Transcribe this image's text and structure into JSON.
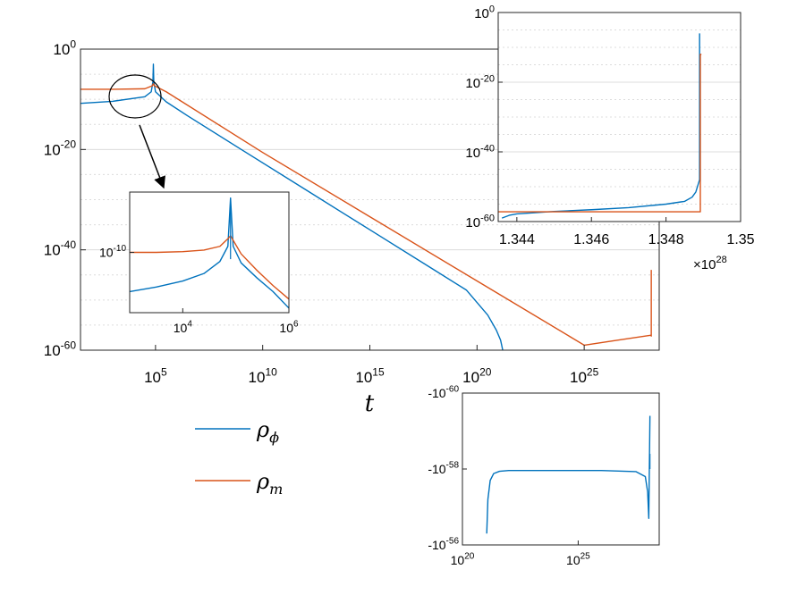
{
  "colors": {
    "rho_phi": "#0072BD",
    "rho_m": "#D95319",
    "grid": "#dcdcdc",
    "axis": "#262626"
  },
  "legend": {
    "placement": "below-left",
    "entries": [
      {
        "series": "rho_phi",
        "base": "ρ",
        "sub": "ϕ"
      },
      {
        "series": "rho_m",
        "base": "ρ",
        "sub": "m"
      }
    ]
  },
  "chart_data": [
    {
      "id": "main",
      "type": "line",
      "xlabel": "t",
      "ylabel": "",
      "xscale": "log",
      "yscale": "log",
      "xlim_exp": [
        1.5,
        28.5
      ],
      "ylim_exp": [
        -60,
        0
      ],
      "grid": true,
      "xticks": [
        {
          "base": "10",
          "exp": "5"
        },
        {
          "base": "10",
          "exp": "10"
        },
        {
          "base": "10",
          "exp": "15"
        },
        {
          "base": "10",
          "exp": "20"
        },
        {
          "base": "10",
          "exp": "25"
        }
      ],
      "yticks": [
        {
          "base": "10",
          "exp": "0"
        },
        {
          "base": "10",
          "exp": "-20"
        },
        {
          "base": "10",
          "exp": "-40"
        },
        {
          "base": "10",
          "exp": "-60"
        }
      ],
      "series": [
        {
          "key": "rho_phi",
          "name": "ρϕ",
          "x_exp": [
            1.5,
            3,
            4.5,
            4.8,
            4.88,
            4.9,
            4.92,
            5.0,
            5.5,
            6.5,
            9,
            12,
            15,
            18,
            19.5,
            20.5,
            20.9,
            21.1,
            21.2
          ],
          "y_exp": [
            -10.8,
            -10.4,
            -9.5,
            -8.5,
            -6.5,
            -3.0,
            -6.5,
            -8.5,
            -10.5,
            -13.3,
            -20,
            -28,
            -36,
            -44,
            -48,
            -53,
            -56,
            -58,
            -60
          ]
        },
        {
          "key": "rho_m",
          "name": "ρm",
          "x_exp": [
            1.5,
            3,
            4.5,
            4.85,
            4.9,
            4.95,
            5.5,
            10,
            15,
            20,
            25,
            28.13,
            28.13,
            28.13
          ],
          "y_exp": [
            -8,
            -8,
            -7.9,
            -7.3,
            -6.9,
            -7.3,
            -8.5,
            -20.6,
            -33.4,
            -46.2,
            -59,
            -57,
            -57.2,
            -44
          ]
        }
      ]
    },
    {
      "id": "inset-left",
      "type": "line",
      "xscale": "log",
      "yscale": "log",
      "xlim_exp": [
        3,
        6
      ],
      "ylim_exp": [
        -14,
        -6
      ],
      "grid": false,
      "xticks": [
        {
          "base": "10",
          "exp": "4"
        },
        {
          "base": "10",
          "exp": "6"
        }
      ],
      "yticks": [
        {
          "base": "10",
          "exp": "-10"
        }
      ],
      "series": [
        {
          "key": "rho_phi",
          "x_exp": [
            3,
            3.5,
            4,
            4.4,
            4.7,
            4.85,
            4.9,
            4.95,
            5.1,
            5.4,
            5.7,
            6
          ],
          "y_exp": [
            -12.6,
            -12.3,
            -11.9,
            -11.4,
            -10.6,
            -9.6,
            -6.4,
            -9.6,
            -10.7,
            -11.7,
            -12.6,
            -13.7
          ]
        },
        {
          "key": "rho_m",
          "x_exp": [
            3,
            3.5,
            4,
            4.4,
            4.7,
            4.85,
            4.9,
            4.95,
            5.1,
            5.4,
            5.7,
            6
          ],
          "y_exp": [
            -10.0,
            -10.0,
            -9.95,
            -9.85,
            -9.6,
            -9.1,
            -8.9,
            -9.2,
            -10.1,
            -11.2,
            -12.2,
            -13.1
          ]
        }
      ],
      "markers": [
        {
          "key": "rho_phi",
          "x_exp": 4.9,
          "y_from_exp": -6.4,
          "y_to_exp": -10.45
        }
      ]
    },
    {
      "id": "inset-top-right",
      "type": "line",
      "xscale": "linear",
      "yscale": "log",
      "xlim": [
        1.3435,
        1.35
      ],
      "ylim_exp": [
        -60,
        0
      ],
      "x_multiplier": {
        "base": "×10",
        "exp": "28"
      },
      "grid": true,
      "xticks": [
        {
          "label": "1.344",
          "value": 1.344
        },
        {
          "label": "1.346",
          "value": 1.346
        },
        {
          "label": "1.348",
          "value": 1.348
        },
        {
          "label": "1.35",
          "value": 1.35
        }
      ],
      "yticks": [
        {
          "base": "10",
          "exp": "0"
        },
        {
          "base": "10",
          "exp": "-20"
        },
        {
          "base": "10",
          "exp": "-40"
        },
        {
          "base": "10",
          "exp": "-60"
        }
      ],
      "series": [
        {
          "key": "rho_phi",
          "x": [
            1.3436,
            1.3438,
            1.344,
            1.345,
            1.346,
            1.347,
            1.348,
            1.3485,
            1.3487,
            1.3488,
            1.3489,
            1.3489
          ],
          "y_exp": [
            -59,
            -58.2,
            -57.8,
            -57.1,
            -56.6,
            -56,
            -55,
            -54.2,
            -53,
            -51.5,
            -48,
            -6
          ]
        },
        {
          "key": "rho_m",
          "x": [
            1.3435,
            1.348,
            1.3489,
            1.34892,
            1.34892,
            1.34895
          ],
          "y_exp": [
            -57.2,
            -57.2,
            -57.2,
            -57.2,
            -12,
            -12
          ]
        }
      ]
    },
    {
      "id": "inset-bottom-right",
      "type": "line",
      "xscale": "log",
      "yscale": "log",
      "xlim_exp": [
        20,
        28.5
      ],
      "ylim_exp": [
        -60,
        -56
      ],
      "grid": false,
      "xticks": [
        {
          "base": "10",
          "exp": "20"
        },
        {
          "base": "10",
          "exp": "25"
        }
      ],
      "yticks": [
        {
          "base": "-10",
          "exp": "-60"
        },
        {
          "base": "-10",
          "exp": "-58"
        },
        {
          "base": "-10",
          "exp": "-56"
        }
      ],
      "series": [
        {
          "key": "rho_phi",
          "x_exp": [
            21.05,
            21.1,
            21.2,
            21.35,
            21.6,
            22,
            24,
            26,
            27.5,
            27.9,
            28.0,
            28.05,
            28.1
          ],
          "y_exp": [
            -59.7,
            -58.8,
            -58.3,
            -58.12,
            -58.06,
            -58.04,
            -58.04,
            -58.04,
            -58.07,
            -58.2,
            -58.6,
            -59.3,
            -56.6
          ]
        }
      ],
      "markers": [
        {
          "key": "rho_phi",
          "x_exp": 28.1,
          "y_from_exp": -58.0,
          "y_to_exp": -57.6
        }
      ]
    }
  ]
}
